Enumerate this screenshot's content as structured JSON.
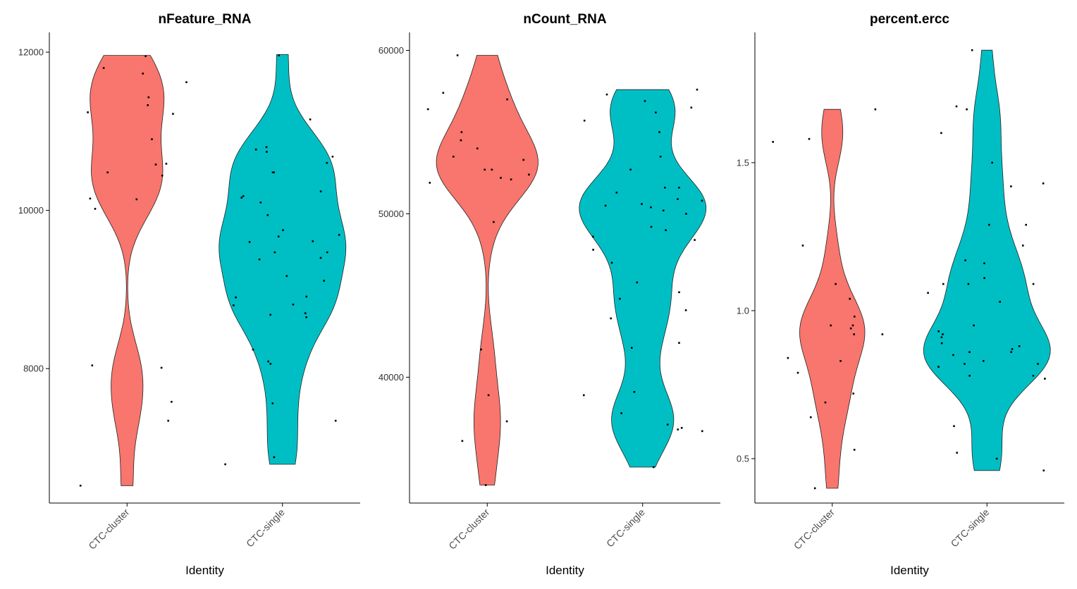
{
  "chart_data": [
    {
      "type": "violin",
      "title": "nFeature_RNA",
      "xlabel": "Identity",
      "ylabel": "",
      "categories": [
        "CTC-cluster",
        "CTC-single"
      ],
      "yticks": [
        8000,
        10000,
        12000
      ],
      "ylim": [
        6300,
        12250
      ],
      "series": [
        {
          "color": "#F8766D",
          "range": [
            6520,
            11960
          ],
          "points": [
            11950,
            11800,
            11730,
            11620,
            11430,
            11330,
            11240,
            11220,
            10900,
            10590,
            10580,
            10480,
            10440,
            10150,
            10140,
            10020,
            8040,
            8010,
            7580,
            7340,
            6520
          ]
        },
        {
          "color": "#00BFC4",
          "range": [
            6790,
            11970
          ],
          "points": [
            11960,
            11150,
            10800,
            10770,
            10740,
            10680,
            10600,
            10480,
            10480,
            10240,
            10180,
            10160,
            10100,
            9940,
            9750,
            9690,
            9670,
            9610,
            9600,
            9470,
            9470,
            9400,
            9380,
            9170,
            9110,
            8910,
            8900,
            8810,
            8800,
            8700,
            8680,
            8650,
            8240,
            8090,
            8060,
            7560,
            7340,
            6880,
            6790
          ]
        }
      ]
    },
    {
      "type": "violin",
      "title": "nCount_RNA",
      "xlabel": "Identity",
      "ylabel": "",
      "categories": [
        "CTC-cluster",
        "CTC-single"
      ],
      "yticks": [
        40000,
        50000,
        60000
      ],
      "ylim": [
        32300,
        61100
      ],
      "series": [
        {
          "color": "#F8766D",
          "range": [
            33400,
            59700
          ],
          "points": [
            59700,
            57400,
            57000,
            56400,
            55000,
            54500,
            54000,
            53500,
            53300,
            52700,
            52700,
            52400,
            52200,
            52100,
            51900,
            49500,
            41700,
            38900,
            37300,
            36100,
            33400
          ]
        },
        {
          "color": "#00BFC4",
          "range": [
            34500,
            57600
          ],
          "points": [
            57600,
            57300,
            56900,
            56500,
            56200,
            55700,
            55000,
            53500,
            52700,
            51600,
            51600,
            51300,
            50900,
            50800,
            50600,
            50500,
            50400,
            50200,
            50000,
            49200,
            49000,
            48600,
            48400,
            47800,
            47000,
            45800,
            45200,
            44800,
            44100,
            43600,
            42100,
            41800,
            39100,
            38900,
            37800,
            37100,
            36900,
            36800,
            36700,
            34500
          ]
        }
      ]
    },
    {
      "type": "violin",
      "title": "percent.ercc",
      "xlabel": "Identity",
      "ylabel": "",
      "categories": [
        "CTC-cluster",
        "CTC-single"
      ],
      "yticks": [
        0.5,
        1.0,
        1.5
      ],
      "yticklabels": [
        "0.5",
        "1.0",
        "1.5"
      ],
      "ylim": [
        0.35,
        1.94
      ],
      "series": [
        {
          "color": "#F8766D",
          "range": [
            0.4,
            1.68
          ],
          "points": [
            1.68,
            1.58,
            1.57,
            1.22,
            1.09,
            1.04,
            0.98,
            0.95,
            0.95,
            0.94,
            0.92,
            0.92,
            0.84,
            0.83,
            0.79,
            0.72,
            0.69,
            0.64,
            0.53,
            0.4
          ]
        },
        {
          "color": "#00BFC4",
          "range": [
            0.46,
            1.88
          ],
          "points": [
            1.88,
            1.69,
            1.68,
            1.6,
            1.5,
            1.43,
            1.42,
            1.29,
            1.29,
            1.22,
            1.17,
            1.16,
            1.11,
            1.09,
            1.09,
            1.09,
            1.06,
            1.03,
            0.95,
            0.93,
            0.92,
            0.91,
            0.89,
            0.88,
            0.87,
            0.86,
            0.86,
            0.85,
            0.83,
            0.82,
            0.82,
            0.81,
            0.78,
            0.78,
            0.77,
            0.61,
            0.52,
            0.5,
            0.46
          ]
        }
      ]
    }
  ]
}
